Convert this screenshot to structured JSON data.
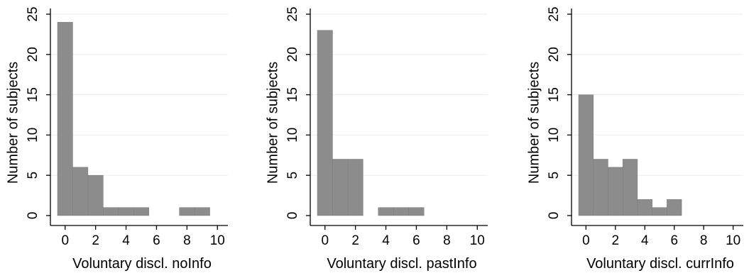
{
  "chart_data": [
    {
      "type": "bar",
      "subtype": "histogram",
      "xlabel": "Voluntary discl. noInfo",
      "ylabel": "Number of subjects",
      "bin_width": 1,
      "x": [
        0,
        1,
        2,
        3,
        4,
        5,
        6,
        7,
        8,
        9
      ],
      "values": [
        24,
        6,
        5,
        1,
        1,
        1,
        0,
        0,
        1,
        1
      ],
      "xlim": [
        -0.5,
        10.5
      ],
      "ylim": [
        0,
        25
      ],
      "xticks": [
        0,
        2,
        4,
        6,
        8,
        10
      ],
      "yticks": [
        0,
        5,
        10,
        15,
        20,
        25
      ],
      "grid": true,
      "bar_color": "#8c8c8c"
    },
    {
      "type": "bar",
      "subtype": "histogram",
      "xlabel": "Voluntary discl. pastInfo",
      "ylabel": "Number of subjects",
      "bin_width": 1,
      "x": [
        0,
        1,
        2,
        3,
        4,
        5,
        6,
        7,
        8,
        9
      ],
      "values": [
        23,
        7,
        7,
        0,
        1,
        1,
        1,
        0,
        0,
        0
      ],
      "xlim": [
        -0.5,
        10.5
      ],
      "ylim": [
        0,
        25
      ],
      "xticks": [
        0,
        2,
        4,
        6,
        8,
        10
      ],
      "yticks": [
        0,
        5,
        10,
        15,
        20,
        25
      ],
      "grid": true,
      "bar_color": "#8c8c8c"
    },
    {
      "type": "bar",
      "subtype": "histogram",
      "xlabel": "Voluntary discl. currInfo",
      "ylabel": "Number of subjects",
      "bin_width": 1,
      "x": [
        0,
        1,
        2,
        3,
        4,
        5,
        6,
        7,
        8,
        9
      ],
      "values": [
        15,
        7,
        6,
        7,
        2,
        1,
        2,
        0,
        0,
        0
      ],
      "xlim": [
        -0.5,
        10.5
      ],
      "ylim": [
        0,
        25
      ],
      "xticks": [
        0,
        2,
        4,
        6,
        8,
        10
      ],
      "yticks": [
        0,
        5,
        10,
        15,
        20,
        25
      ],
      "grid": true,
      "bar_color": "#8c8c8c"
    }
  ]
}
